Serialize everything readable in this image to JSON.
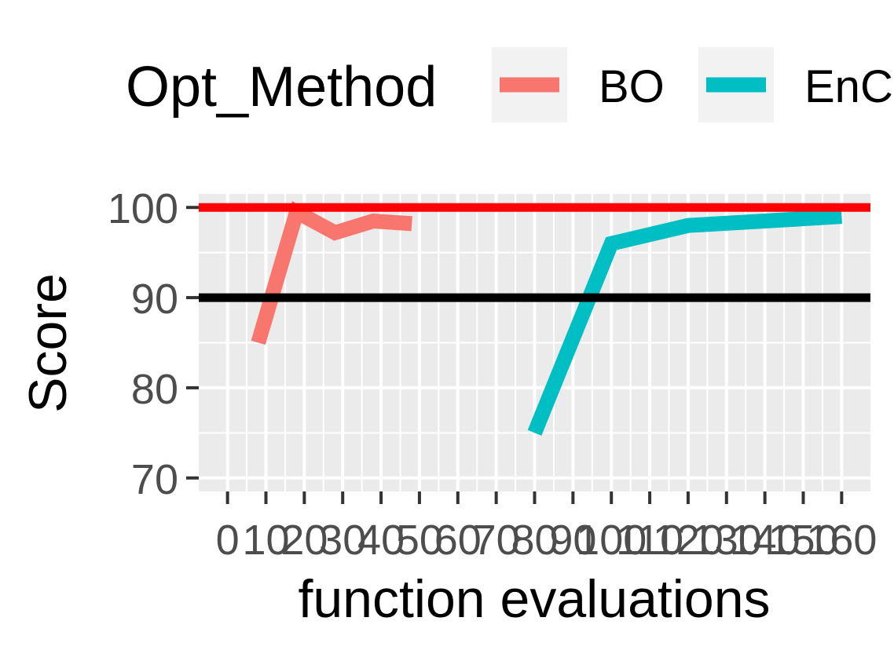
{
  "chart_data": {
    "type": "line",
    "xlabel": "function evaluations",
    "ylabel": "Score",
    "xlim": [
      -7.5,
      167.5
    ],
    "ylim": [
      68.5,
      101.5
    ],
    "x_ticks": [
      0,
      10,
      20,
      30,
      40,
      50,
      60,
      70,
      80,
      90,
      100,
      110,
      120,
      130,
      140,
      150,
      160
    ],
    "x_tick_labels": [
      "0",
      "10",
      "20",
      "30",
      "40",
      "50",
      "60",
      "70",
      "80",
      "90",
      "100",
      "110",
      "120",
      "130",
      "140",
      "150",
      "160"
    ],
    "y_ticks": [
      70,
      80,
      90,
      100
    ],
    "y_tick_labels": [
      "70",
      "80",
      "90",
      "100"
    ],
    "grid": true,
    "legend": {
      "title": "Opt_Method",
      "position": "top",
      "entries": [
        "BO",
        "EnC"
      ]
    },
    "series": [
      {
        "name": "BO",
        "color": "#F8766D",
        "x": [
          8,
          18,
          28,
          38,
          48
        ],
        "y": [
          85,
          99.5,
          97.2,
          98.5,
          98.2
        ]
      },
      {
        "name": "EnC",
        "color": "#00BFC4",
        "x": [
          80,
          100,
          120,
          140,
          160
        ],
        "y": [
          75,
          96,
          98,
          98.5,
          99
        ]
      }
    ],
    "reference_lines": [
      {
        "y": 100,
        "color": "#FF0000"
      },
      {
        "y": 90,
        "color": "#000000"
      }
    ]
  }
}
